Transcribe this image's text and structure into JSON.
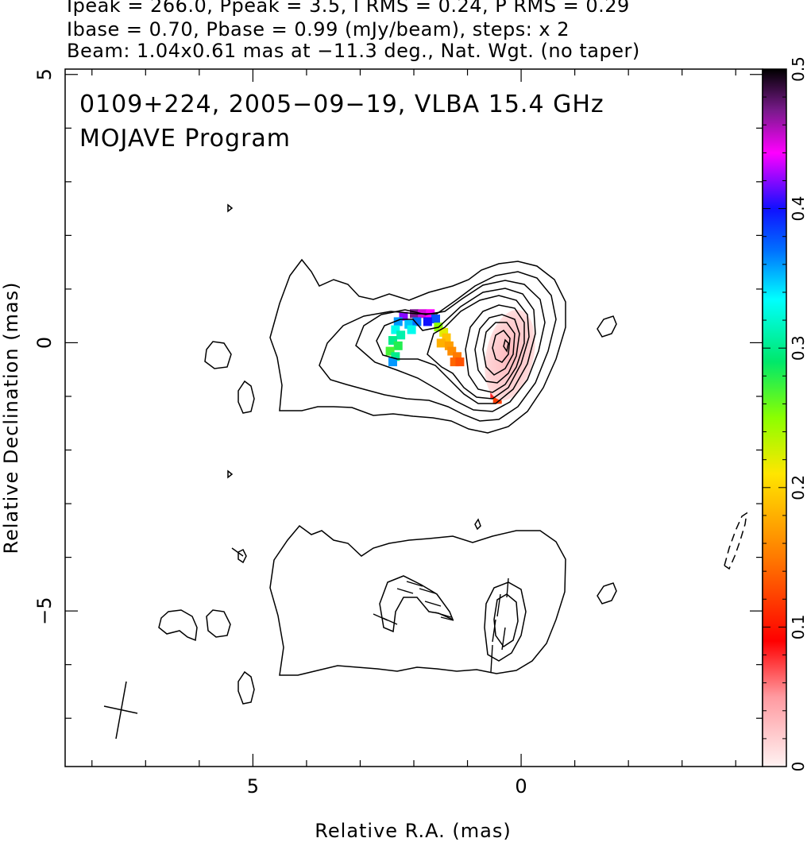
{
  "header": {
    "line1": "Ipeak = 266.0, Ppeak = 3.5, I RMS = 0.24, P RMS = 0.29",
    "line2": "Ibase = 0.70, Pbase = 0.99 (mJy/beam), steps: x 2",
    "line3": "Beam: 1.04x0.61 mas at −11.3 deg., Nat. Wgt. (no taper)"
  },
  "chart_data": {
    "type": "heatmap",
    "subtype": "radio contour map with fractional polarization color overlay",
    "annotation_line1": "0109+224, 2005−09−19, VLBA 15.4 GHz",
    "annotation_line2": "MOJAVE Program",
    "xlabel": "Relative R.A. (mas)",
    "ylabel": "Relative Declination (mas)",
    "x_ticklabels": [
      "5",
      "0"
    ],
    "y_ticklabels": [
      "5",
      "0",
      "−5"
    ],
    "xlim": [
      8.5,
      -4.5
    ],
    "ylim": [
      -7.9,
      5.1
    ],
    "x_tick_values": [
      5,
      0
    ],
    "y_tick_values": [
      5,
      0,
      -5
    ],
    "colorbar": {
      "range": [
        0,
        0.5
      ],
      "ticklabels": [
        "0",
        "0.1",
        "0.2",
        "0.3",
        "0.4",
        "0.5"
      ],
      "tick_values": [
        0,
        0.1,
        0.2,
        0.3,
        0.4,
        0.5
      ]
    },
    "beam": {
      "major_mas": 1.04,
      "minor_mas": 0.61,
      "pa_deg": -11.3,
      "center": [
        7.3,
        -6.9
      ]
    },
    "total_intensity_panel": {
      "contour_levels_mjy": [
        0.7,
        1.4,
        2.8,
        5.6,
        11.2,
        22.4,
        44.8,
        89.6,
        179.2
      ],
      "peak_mjy": 266.0,
      "core_position": [
        0,
        0
      ]
    },
    "polarization_panel": {
      "peak_mjy": 3.5,
      "core_position": [
        0,
        -5
      ]
    },
    "fractional_polarization_pixels": [
      {
        "x": 2.0,
        "y": 0.55,
        "v": 0.47
      },
      {
        "x": 1.85,
        "y": 0.55,
        "v": 0.45
      },
      {
        "x": 1.7,
        "y": 0.55,
        "v": 0.44
      },
      {
        "x": 1.6,
        "y": 0.45,
        "v": 0.38
      },
      {
        "x": 2.2,
        "y": 0.5,
        "v": 0.42
      },
      {
        "x": 2.3,
        "y": 0.4,
        "v": 0.36
      },
      {
        "x": 2.1,
        "y": 0.35,
        "v": 0.35
      },
      {
        "x": 1.95,
        "y": 0.4,
        "v": 0.37
      },
      {
        "x": 1.75,
        "y": 0.4,
        "v": 0.4
      },
      {
        "x": 2.35,
        "y": 0.25,
        "v": 0.33
      },
      {
        "x": 2.25,
        "y": 0.15,
        "v": 0.31
      },
      {
        "x": 2.05,
        "y": 0.25,
        "v": 0.33
      },
      {
        "x": 2.4,
        "y": 0.05,
        "v": 0.3
      },
      {
        "x": 2.3,
        "y": -0.05,
        "v": 0.28
      },
      {
        "x": 2.45,
        "y": -0.15,
        "v": 0.27
      },
      {
        "x": 2.35,
        "y": -0.25,
        "v": 0.3
      },
      {
        "x": 2.4,
        "y": -0.35,
        "v": 0.36
      },
      {
        "x": 1.55,
        "y": 0.3,
        "v": 0.25
      },
      {
        "x": 1.45,
        "y": 0.2,
        "v": 0.22
      },
      {
        "x": 1.4,
        "y": 0.1,
        "v": 0.19
      },
      {
        "x": 1.5,
        "y": 0.0,
        "v": 0.18
      },
      {
        "x": 1.35,
        "y": -0.05,
        "v": 0.17
      },
      {
        "x": 1.3,
        "y": -0.15,
        "v": 0.16
      },
      {
        "x": 1.2,
        "y": -0.25,
        "v": 0.15
      },
      {
        "x": 1.25,
        "y": -0.35,
        "v": 0.14
      },
      {
        "x": 1.15,
        "y": -0.35,
        "v": 0.13
      },
      {
        "x": 0.5,
        "y": -0.8,
        "v": 0.1
      },
      {
        "x": 0.4,
        "y": -0.9,
        "v": 0.09
      },
      {
        "x": 0.5,
        "y": -0.95,
        "v": 0.08
      },
      {
        "x": 0.45,
        "y": -1.05,
        "v": 0.12
      },
      {
        "x": 0.3,
        "y": -0.85,
        "v": 0.07
      }
    ]
  }
}
